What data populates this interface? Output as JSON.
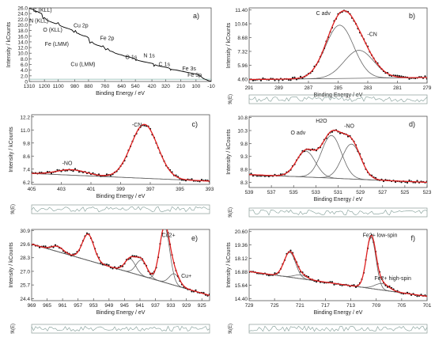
{
  "figure": {
    "residual_label": "ℜ(E)"
  },
  "chart_data": [
    {
      "id": "a",
      "type": "line",
      "label": "a)",
      "xlabel": "Binding Energy / eV",
      "ylabel": "Intensity / kCounts",
      "xlim": [
        1310,
        -10
      ],
      "ylim": [
        0,
        26
      ],
      "xticks": [
        1310,
        1200,
        1100,
        980,
        880,
        760,
        640,
        540,
        420,
        320,
        210,
        100,
        -10
      ],
      "yticks": [
        0,
        2.0,
        4.0,
        6.0,
        8.0,
        10.0,
        12.0,
        14.0,
        16.0,
        18.0,
        20.0,
        22.0,
        24.0,
        26.0
      ],
      "ytick_labels": [
        "0",
        "2.0",
        "4.0",
        "6.0",
        "8.0",
        "10.0",
        "12.0",
        "14.0",
        "16.0",
        "18.0",
        "20.0",
        "22.0",
        "24.0",
        "26.0"
      ],
      "series": [
        {
          "color": "#000000",
          "x": [
            1310,
            1290,
            1270,
            1262,
            1255,
            1240,
            1220,
            1210,
            1200,
            1185,
            1170,
            1140,
            1115,
            1100,
            1090,
            1080,
            1060,
            1040,
            1020,
            1000,
            985,
            975,
            965,
            955,
            945,
            935,
            920,
            900,
            890,
            880,
            870,
            855,
            840,
            820,
            800,
            785,
            775,
            765,
            755,
            740,
            725,
            710,
            700,
            690,
            680,
            660,
            640,
            620,
            600,
            580,
            560,
            545,
            535,
            530,
            520,
            500,
            480,
            460,
            440,
            420,
            410,
            405,
            398,
            395,
            380,
            360,
            340,
            320,
            300,
            290,
            284,
            280,
            270,
            250,
            230,
            210,
            190,
            170,
            150,
            130,
            110,
            100,
            90,
            80,
            75,
            70,
            60,
            50,
            40,
            30,
            20,
            10,
            0,
            -10
          ],
          "y": [
            25.8,
            25.6,
            25.2,
            24.5,
            24.8,
            24.4,
            24.0,
            22.2,
            22.6,
            21.8,
            21.4,
            20.8,
            20.4,
            20.8,
            19.9,
            19.6,
            19.2,
            18.9,
            18.6,
            18.2,
            17.4,
            18.0,
            17.1,
            17.0,
            16.7,
            16.5,
            16.2,
            16.0,
            15.8,
            15.4,
            13.6,
            14.0,
            13.3,
            12.9,
            12.6,
            12.3,
            12.6,
            11.9,
            11.2,
            11.6,
            10.8,
            10.6,
            10.4,
            10.1,
            9.9,
            9.6,
            9.4,
            9.0,
            8.8,
            8.6,
            8.3,
            8.1,
            7.4,
            7.7,
            7.4,
            7.2,
            7.0,
            6.8,
            6.6,
            6.4,
            6.3,
            5.4,
            5.8,
            5.9,
            5.6,
            5.4,
            5.2,
            5.0,
            4.8,
            4.6,
            4.0,
            4.3,
            4.2,
            4.1,
            3.9,
            3.7,
            3.5,
            3.3,
            3.1,
            2.9,
            2.7,
            2.6,
            2.4,
            2.3,
            1.9,
            2.1,
            1.6,
            1.2,
            0.9,
            0.7,
            0.5,
            0.3,
            0.2,
            0.1
          ]
        }
      ],
      "annotations": [
        {
          "text": "C (KLL)",
          "x": 1215,
          "y": 24.6
        },
        {
          "text": "N (KLL)",
          "x": 1240,
          "y": 20.8
        },
        {
          "text": "O (KLL)",
          "x": 1140,
          "y": 17.6
        },
        {
          "text": "Cu 2p",
          "x": 935,
          "y": 19.2
        },
        {
          "text": "Fe (LMM)",
          "x": 1110,
          "y": 12.6
        },
        {
          "text": "Fe 2p",
          "x": 745,
          "y": 14.7
        },
        {
          "text": "Cu (LMM)",
          "x": 920,
          "y": 5.4
        },
        {
          "text": "O 1s",
          "x": 570,
          "y": 7.9
        },
        {
          "text": "N 1s",
          "x": 440,
          "y": 8.5
        },
        {
          "text": "C 1s",
          "x": 330,
          "y": 5.5
        },
        {
          "text": "Fe 3s",
          "x": 150,
          "y": 3.9
        },
        {
          "text": "Fe 3p",
          "x": 110,
          "y": 1.7
        }
      ]
    },
    {
      "id": "b",
      "type": "line",
      "label": "b)",
      "xlabel": "Binding Energy / eV",
      "ylabel": "Intensity / kCounts",
      "xlim": [
        291,
        279
      ],
      "ylim": [
        4.2,
        11.6
      ],
      "xticks": [
        291,
        289,
        287,
        285,
        283,
        281,
        279
      ],
      "yticks": [
        4.6,
        5.96,
        7.32,
        8.68,
        10.04,
        11.4
      ],
      "ytick_labels": [
        "4.60",
        "5.96",
        "7.32",
        "8.68",
        "10.04",
        "11.40"
      ],
      "baseline": {
        "x": [
          291,
          279
        ],
        "y": [
          4.55,
          4.75
        ]
      },
      "components": [
        {
          "center": 284.9,
          "height": 5.25,
          "sigma": 0.95
        },
        {
          "center": 283.6,
          "height": 2.75,
          "sigma": 1.0
        }
      ],
      "annotations": [
        {
          "text": "C adv",
          "x": 286.0,
          "y": 10.9
        },
        {
          "text": "-CN",
          "x": 282.7,
          "y": 8.85
        }
      ],
      "residual": true
    },
    {
      "id": "c",
      "type": "line",
      "label": "c)",
      "xlabel": "Binding Energy / eV",
      "ylabel": "Intensity / kCounts",
      "xlim": [
        405,
        393
      ],
      "ylim": [
        6.0,
        12.4
      ],
      "xticks": [
        405,
        403,
        401,
        399,
        397,
        395,
        393
      ],
      "yticks": [
        6.2,
        7.4,
        8.6,
        9.8,
        11.0,
        12.2
      ],
      "ytick_labels": [
        "6.2",
        "7.4",
        "8.6",
        "9.8",
        "11.0",
        "12.2"
      ],
      "baseline": {
        "x": [
          405,
          393
        ],
        "y": [
          7.0,
          6.3
        ]
      },
      "components": [
        {
          "center": 397.4,
          "height": 4.95,
          "sigma": 0.9
        },
        {
          "center": 402.3,
          "height": 0.5,
          "sigma": 1.0
        }
      ],
      "annotations": [
        {
          "text": "-CN",
          "x": 397.9,
          "y": 11.3
        },
        {
          "text": "-NO",
          "x": 402.6,
          "y": 7.8
        }
      ],
      "residual": true
    },
    {
      "id": "d",
      "type": "line",
      "label": "d)",
      "xlabel": "Binding Energy / eV",
      "ylabel": "Intensity / kCounts",
      "xlim": [
        539,
        523
      ],
      "ylim": [
        8.1,
        10.85
      ],
      "xticks": [
        539,
        537,
        535,
        533,
        531,
        529,
        527,
        525,
        523
      ],
      "yticks": [
        8.3,
        8.8,
        9.3,
        9.8,
        10.3,
        10.8
      ],
      "ytick_labels": [
        "8.3",
        "8.8",
        "9.3",
        "9.8",
        "10.3",
        "10.8"
      ],
      "baseline": {
        "x": [
          539,
          523
        ],
        "y": [
          8.6,
          8.3
        ]
      },
      "components": [
        {
          "center": 533.9,
          "height": 1.0,
          "sigma": 0.85
        },
        {
          "center": 531.6,
          "height": 1.65,
          "sigma": 0.9
        },
        {
          "center": 529.8,
          "height": 1.35,
          "sigma": 0.85
        }
      ],
      "annotations": [
        {
          "text": "O adv",
          "x": 534.6,
          "y": 10.15
        },
        {
          "text": "H2O",
          "x": 532.5,
          "y": 10.6
        },
        {
          "text": "-NO",
          "x": 530.0,
          "y": 10.4
        }
      ],
      "residual": true
    },
    {
      "id": "e",
      "type": "line",
      "label": "e)",
      "xlabel": "Binding Energy / eV",
      "ylabel": "Intensity / kCounts",
      "xlim": [
        969,
        923
      ],
      "ylim": [
        24.2,
        31.0
      ],
      "xticks": [
        969,
        965,
        961,
        957,
        953,
        949,
        945,
        941,
        937,
        933,
        929,
        925
      ],
      "yticks": [
        24.4,
        25.7,
        27.0,
        28.3,
        29.6,
        30.9
      ],
      "ytick_labels": [
        "24.4",
        "25.7",
        "27.0",
        "28.3",
        "29.6",
        "30.9"
      ],
      "baseline": {
        "x": [
          969,
          923
        ],
        "y": [
          29.6,
          24.7
        ]
      },
      "components": [
        {
          "center": 934.6,
          "height": 5.3,
          "sigma": 1.3
        },
        {
          "center": 932.1,
          "height": 1.1,
          "sigma": 1.3
        },
        {
          "center": 954.4,
          "height": 2.5,
          "sigma": 1.5
        },
        {
          "center": 943.5,
          "height": 1.3,
          "sigma": 1.4
        },
        {
          "center": 940.6,
          "height": 1.5,
          "sigma": 1.4
        },
        {
          "center": 962.3,
          "height": 0.5,
          "sigma": 1.5
        }
      ],
      "annotations": [
        {
          "text": "Cu2+",
          "x": 933.6,
          "y": 30.3
        },
        {
          "text": "Cu+",
          "x": 929.0,
          "y": 26.4
        }
      ],
      "residual": true
    },
    {
      "id": "f",
      "type": "line",
      "label": "f)",
      "xlabel": "Binding Energy / eV",
      "ylabel": "Intensity / kCounts",
      "xlim": [
        729,
        701
      ],
      "ylim": [
        14.2,
        20.8
      ],
      "xticks": [
        729,
        725,
        721,
        717,
        713,
        709,
        705,
        701
      ],
      "yticks": [
        14.4,
        15.64,
        16.88,
        18.12,
        19.36,
        20.6
      ],
      "ytick_labels": [
        "14.40",
        "15.64",
        "16.88",
        "18.12",
        "19.36",
        "20.60"
      ],
      "baseline": {
        "x": [
          729,
          701
        ],
        "y": [
          16.9,
          14.6
        ]
      },
      "components": [
        {
          "center": 709.8,
          "height": 4.75,
          "sigma": 0.75
        },
        {
          "center": 708.1,
          "height": 0.6,
          "sigma": 1.1
        },
        {
          "center": 722.6,
          "height": 2.3,
          "sigma": 0.9
        },
        {
          "center": 720.9,
          "height": 0.35,
          "sigma": 1.0
        }
      ],
      "annotations": [
        {
          "text": "Fe2+ low-spin",
          "x": 708.4,
          "y": 20.1
        },
        {
          "text": "Fe2+ high-spin",
          "x": 706.4,
          "y": 16.1
        }
      ],
      "residual": true
    }
  ]
}
